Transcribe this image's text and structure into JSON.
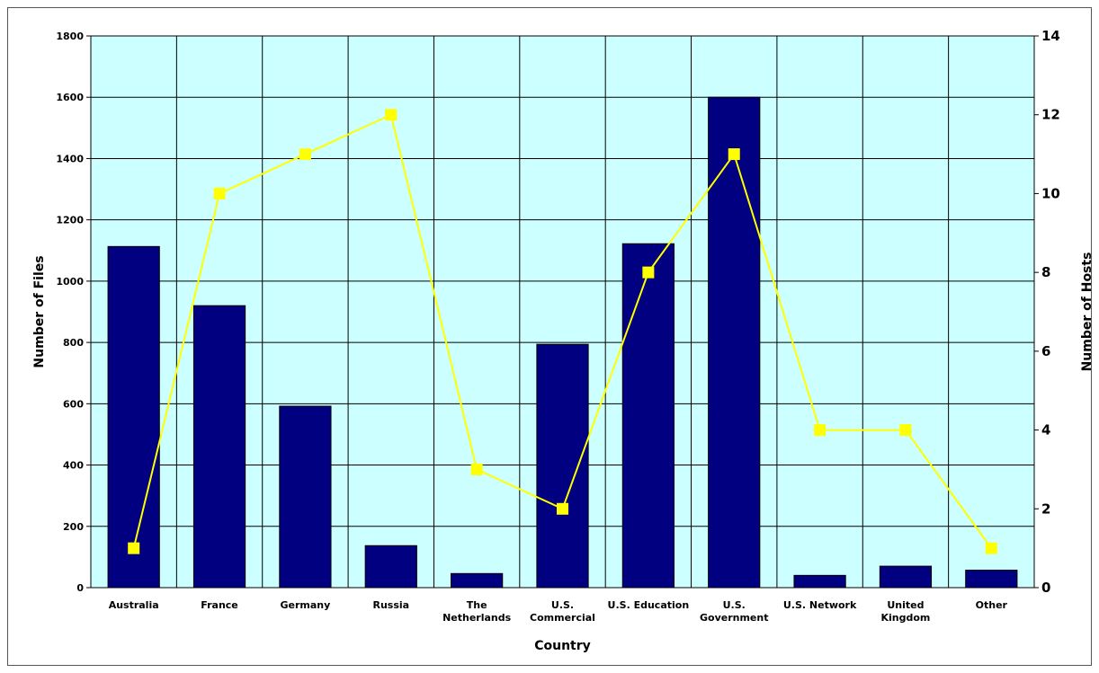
{
  "chart_data": {
    "type": "bar",
    "title": "",
    "xlabel": "Country",
    "ylabel": "Number of Files",
    "y2label": "Number of Hosts",
    "categories": [
      [
        "Australia"
      ],
      [
        "France"
      ],
      [
        "Germany"
      ],
      [
        "Russia"
      ],
      [
        "The",
        "Netherlands"
      ],
      [
        "U.S.",
        "Commercial"
      ],
      [
        "U.S. Education"
      ],
      [
        "U.S.",
        "Government"
      ],
      [
        "U.S. Network"
      ],
      [
        "United",
        "Kingdom"
      ],
      [
        "Other"
      ]
    ],
    "series": [
      {
        "type": "bar",
        "axis": "left",
        "values": [
          1113,
          920,
          592,
          137,
          46,
          794,
          1122,
          1600,
          40,
          70,
          57
        ],
        "color": "#000080"
      },
      {
        "type": "line",
        "axis": "right",
        "values": [
          1,
          10,
          11,
          12,
          3,
          2,
          8,
          11,
          4,
          4,
          1
        ],
        "color": "#ffff00"
      }
    ],
    "ylim": [
      0,
      1800
    ],
    "y2lim": [
      0,
      14
    ],
    "yticks": [
      "0",
      "200",
      "400",
      "600",
      "800",
      "1000",
      "1200",
      "1400",
      "1600",
      "1800"
    ],
    "y2ticks": [
      "0",
      "2",
      "4",
      "6",
      "8",
      "10",
      "12",
      "14"
    ],
    "plot_background": "#ccffff",
    "grid": true,
    "legend": "none"
  }
}
